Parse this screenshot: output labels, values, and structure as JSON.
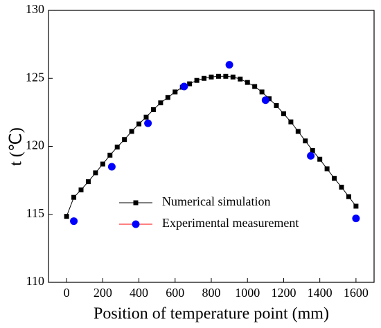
{
  "chart_data": {
    "type": "line",
    "xlabel": "Position of temperature point (mm)",
    "ylabel": "t (℃)",
    "xlim": [
      -100,
      1700
    ],
    "xticks": [
      0,
      200,
      400,
      600,
      800,
      1000,
      1200,
      1400,
      1600
    ],
    "ylim": [
      110,
      130
    ],
    "yticks": [
      110,
      115,
      120,
      125,
      130
    ],
    "legend": "lower-center",
    "series": [
      {
        "name": "Numerical simulation",
        "type": "line",
        "color": "#000000",
        "line_color": "#000000",
        "x": [
          0,
          40,
          80,
          120,
          160,
          200,
          240,
          280,
          320,
          360,
          400,
          440,
          480,
          520,
          560,
          600,
          640,
          680,
          720,
          760,
          800,
          840,
          880,
          920,
          960,
          1000,
          1040,
          1080,
          1120,
          1160,
          1200,
          1240,
          1280,
          1320,
          1360,
          1400,
          1440,
          1480,
          1520,
          1560,
          1600
        ],
        "values": [
          114.85,
          116.25,
          116.8,
          117.4,
          118.05,
          118.7,
          119.35,
          119.95,
          120.5,
          121.1,
          121.65,
          122.15,
          122.7,
          123.2,
          123.6,
          124.0,
          124.35,
          124.6,
          124.85,
          125.0,
          125.1,
          125.15,
          125.15,
          125.1,
          124.95,
          124.7,
          124.4,
          124.0,
          123.5,
          123.0,
          122.4,
          121.8,
          121.1,
          120.4,
          119.7,
          119.05,
          118.35,
          117.65,
          117.0,
          116.3,
          115.6
        ]
      },
      {
        "name": "Experimental measurement",
        "type": "scatter",
        "color": "#0000ff",
        "line_color": "#ff0000",
        "x": [
          40,
          250,
          450,
          650,
          900,
          1100,
          1350,
          1600
        ],
        "values": [
          114.5,
          118.5,
          121.7,
          124.4,
          126.0,
          123.4,
          119.3,
          114.7
        ]
      }
    ]
  }
}
